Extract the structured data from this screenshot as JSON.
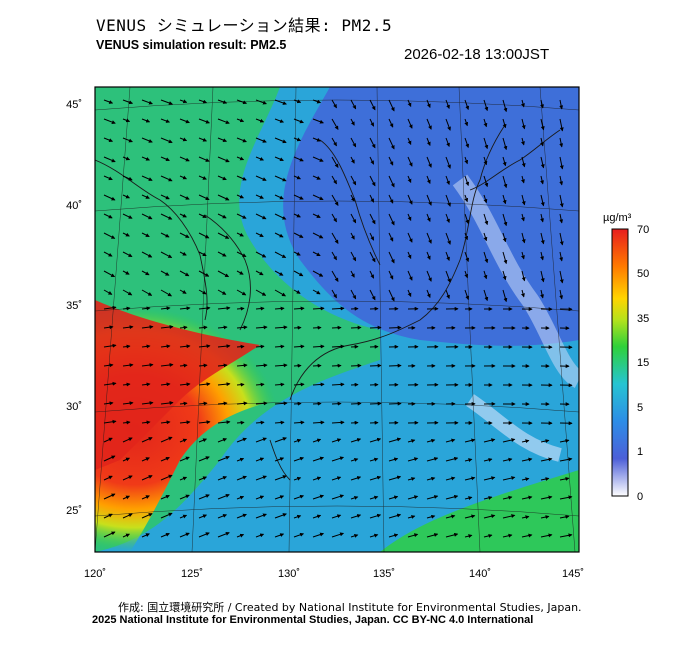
{
  "header": {
    "title_jp": "VENUS シミュレーション結果: PM2.5",
    "title_en": "VENUS simulation result: PM2.5",
    "timestamp": "2026-02-18 13:00JST"
  },
  "map": {
    "variable": "PM2.5",
    "lon_ticks": [
      "120˚",
      "125˚",
      "130˚",
      "135˚",
      "140˚",
      "145˚"
    ],
    "lat_ticks": [
      "45˚",
      "40˚",
      "35˚",
      "30˚",
      "25˚"
    ],
    "colors": {
      "low": "#3a63d8",
      "mid": "#1fc06a",
      "high": "#e1251b",
      "coast": "#1a1a1a",
      "arrow": "#000000"
    }
  },
  "colorbar": {
    "unit": "µg/m³",
    "ticks": [
      "70",
      "50",
      "35",
      "15",
      "5",
      "1",
      "0"
    ],
    "colors": [
      "#ffffff",
      "#3d5bd6",
      "#2aa9e6",
      "#25c9a0",
      "#2fd13a",
      "#b8e21b",
      "#ffd400",
      "#ff8a00",
      "#e81e1e"
    ]
  },
  "footer": {
    "credit_jp_en": "作成: 国立環境研究所 / Created by National Institute for Environmental Studies, Japan.",
    "license": "2025 National Institute for Environmental Studies, Japan. CC BY-NC 4.0 International"
  }
}
